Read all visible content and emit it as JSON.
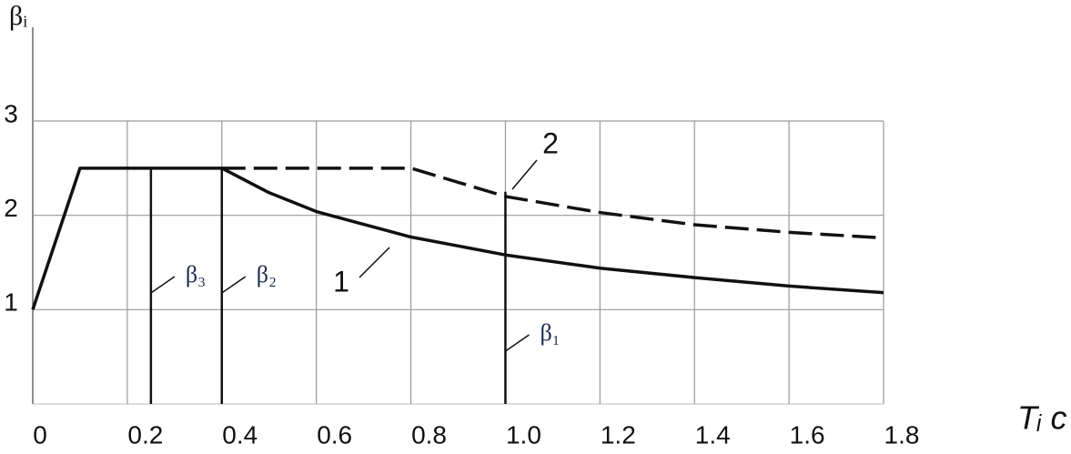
{
  "chart_data": {
    "type": "line",
    "y_label": "βᵢ",
    "x_label": "Tᵢ c",
    "xlim": [
      0,
      1.8
    ],
    "ylim": [
      0,
      3
    ],
    "xticks": [
      0,
      0.2,
      0.4,
      0.6,
      0.8,
      {
        "value": 1,
        "label": "1.0"
      },
      1.2,
      1.4,
      1.6,
      1.8
    ],
    "yticks": [
      1,
      2,
      3
    ],
    "grid": true,
    "series": [
      {
        "name": "1",
        "color": "#111111",
        "dash": false,
        "x": [
          0,
          0.1,
          0.4,
          0.5,
          0.6,
          0.8,
          1.0,
          1.2,
          1.4,
          1.6,
          1.8
        ],
        "values": [
          1,
          2.5,
          2.5,
          2.24,
          2.04,
          1.77,
          1.58,
          1.44,
          1.34,
          1.25,
          1.18
        ]
      },
      {
        "name": "2",
        "color": "#111111",
        "dash": true,
        "x": [
          0.4,
          0.8,
          1.0,
          1.2,
          1.4,
          1.6,
          1.8
        ],
        "values": [
          2.5,
          2.5,
          2.2,
          2.03,
          1.9,
          1.82,
          1.76
        ]
      }
    ],
    "markers": [
      {
        "label": "β₃",
        "x": 0.25,
        "top": 2.5
      },
      {
        "label": "β₂",
        "x": 0.4,
        "top": 2.5
      },
      {
        "label": "β₁",
        "x": 1.0,
        "top": 2.25
      }
    ]
  }
}
